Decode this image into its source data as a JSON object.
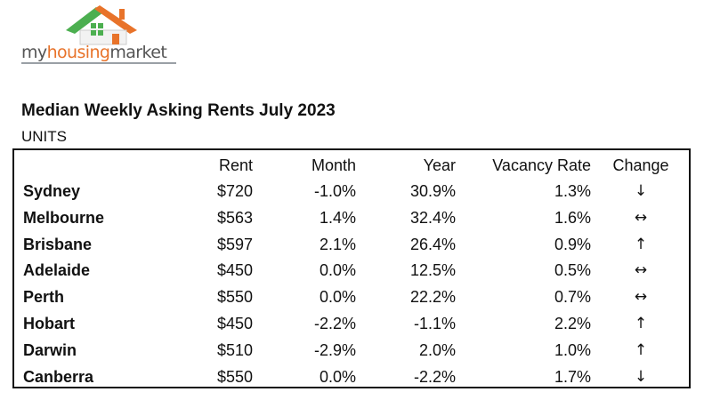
{
  "logo": {
    "word_my": "my",
    "word_housing": "housing",
    "word_market": "market",
    "colors": {
      "roof_left": "#4caf50",
      "roof_right": "#e8732a",
      "text": "#555555"
    }
  },
  "title": "Median Weekly Asking Rents July 2023",
  "subtitle": "UNITS",
  "chart_data": {
    "type": "table",
    "title": "Median Weekly Asking Rents July 2023",
    "subtitle": "UNITS",
    "columns": [
      "",
      "Rent",
      "Month",
      "Year",
      "Vacancy Rate",
      "Change"
    ],
    "rows": [
      {
        "city": "Sydney",
        "rent": "$720",
        "month": "-1.0%",
        "year": "30.9%",
        "vacancy": "1.3%",
        "change": "↓",
        "change_icon": "arrow-down-icon"
      },
      {
        "city": "Melbourne",
        "rent": "$563",
        "month": "1.4%",
        "year": "32.4%",
        "vacancy": "1.6%",
        "change": "↔",
        "change_icon": "arrow-left-right-icon"
      },
      {
        "city": "Brisbane",
        "rent": "$597",
        "month": "2.1%",
        "year": "26.4%",
        "vacancy": "0.9%",
        "change": "↑",
        "change_icon": "arrow-up-icon"
      },
      {
        "city": "Adelaide",
        "rent": "$450",
        "month": "0.0%",
        "year": "12.5%",
        "vacancy": "0.5%",
        "change": "↔",
        "change_icon": "arrow-left-right-icon"
      },
      {
        "city": "Perth",
        "rent": "$550",
        "month": "0.0%",
        "year": "22.2%",
        "vacancy": "0.7%",
        "change": "↔",
        "change_icon": "arrow-left-right-icon"
      },
      {
        "city": "Hobart",
        "rent": "$450",
        "month": "-2.2%",
        "year": "-1.1%",
        "vacancy": "2.2%",
        "change": "↑",
        "change_icon": "arrow-up-icon"
      },
      {
        "city": "Darwin",
        "rent": "$510",
        "month": "-2.9%",
        "year": "2.0%",
        "vacancy": "1.0%",
        "change": "↑",
        "change_icon": "arrow-up-icon"
      },
      {
        "city": "Canberra",
        "rent": "$550",
        "month": "0.0%",
        "year": "-2.2%",
        "vacancy": "1.7%",
        "change": "↓",
        "change_icon": "arrow-down-icon"
      }
    ]
  }
}
